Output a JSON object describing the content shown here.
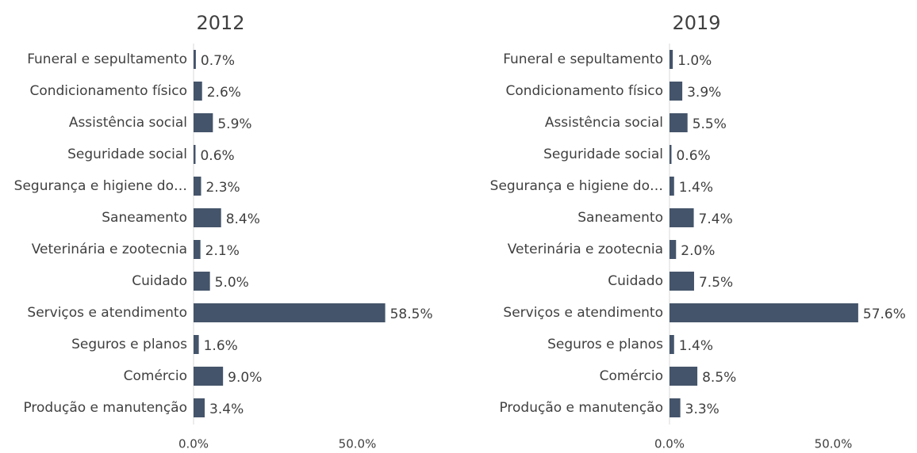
{
  "chart_data": [
    {
      "type": "bar",
      "title": "2012",
      "categories": [
        "Funeral e sepultamento",
        "Condicionamento físico",
        "Assistência social",
        "Seguridade social",
        "Segurança e higiene do…",
        "Saneamento",
        "Veterinária e zootecnia",
        "Cuidado",
        "Serviços e atendimento",
        "Seguros e planos",
        "Comércio",
        "Produção e manutenção"
      ],
      "values": [
        0.7,
        2.6,
        5.9,
        0.6,
        2.3,
        8.4,
        2.1,
        5.0,
        58.5,
        1.6,
        9.0,
        3.4
      ],
      "value_labels": [
        "0.7%",
        "2.6%",
        "5.9%",
        "0.6%",
        "2.3%",
        "8.4%",
        "2.1%",
        "5.0%",
        "58.5%",
        "1.6%",
        "9.0%",
        "3.4%"
      ],
      "color": "#44546a",
      "xlim": [
        0,
        60
      ],
      "xticks": [
        {
          "value": 0,
          "label": "0.0%"
        },
        {
          "value": 50,
          "label": "50.0%"
        }
      ]
    },
    {
      "type": "bar",
      "title": "2019",
      "categories": [
        "Funeral e sepultamento",
        "Condicionamento físico",
        "Assistência social",
        "Seguridade social",
        "Segurança e higiene do…",
        "Saneamento",
        "Veterinária e zootecnia",
        "Cuidado",
        "Serviços e atendimento",
        "Seguros e planos",
        "Comércio",
        "Produção e manutenção"
      ],
      "values": [
        1.0,
        3.9,
        5.5,
        0.6,
        1.4,
        7.4,
        2.0,
        7.5,
        57.6,
        1.4,
        8.5,
        3.3
      ],
      "value_labels": [
        "1.0%",
        "3.9%",
        "5.5%",
        "0.6%",
        "1.4%",
        "7.4%",
        "2.0%",
        "7.5%",
        "57.6%",
        "1.4%",
        "8.5%",
        "3.3%"
      ],
      "color": "#44546a",
      "xlim": [
        0,
        60
      ],
      "xticks": [
        {
          "value": 0,
          "label": "0.0%"
        },
        {
          "value": 50,
          "label": "50.0%"
        }
      ]
    }
  ]
}
